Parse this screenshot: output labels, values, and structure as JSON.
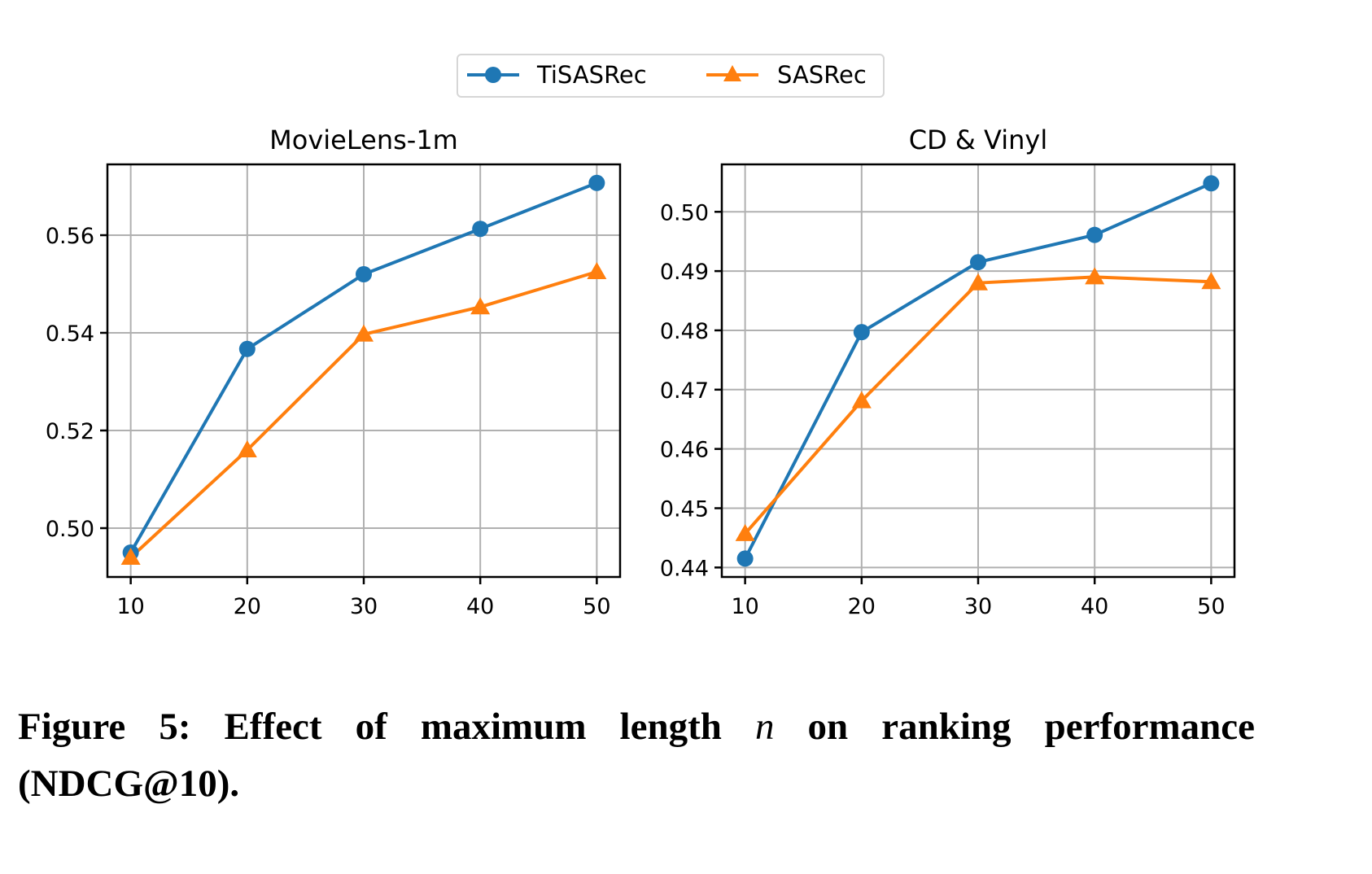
{
  "colors": {
    "tisasrec": "#1f77b4",
    "sasrec": "#ff7f0e",
    "grid": "#b0b0b0",
    "axis": "#000000"
  },
  "legend": {
    "items": [
      {
        "label": "TiSASRec",
        "marker": "circle",
        "color": "#1f77b4"
      },
      {
        "label": "SASRec",
        "marker": "triangle-up",
        "color": "#ff7f0e"
      }
    ],
    "placement": "top-center"
  },
  "caption": {
    "prefix": "Figure 5: Effect of maximum length ",
    "variable": "n",
    "suffix": " on ranking performance (NDCG@10)."
  },
  "chart_data": [
    {
      "type": "line",
      "title": "MovieLens-1m",
      "xlabel": "",
      "ylabel": "",
      "x": [
        10,
        20,
        30,
        40,
        50
      ],
      "xticks": [
        "10",
        "20",
        "30",
        "40",
        "50"
      ],
      "xlim": [
        8,
        52
      ],
      "yticks": [
        0.5,
        0.52,
        0.54,
        0.56
      ],
      "ytick_labels": [
        "0.50",
        "0.52",
        "0.54",
        "0.56"
      ],
      "ylim": [
        0.49,
        0.5745
      ],
      "grid": true,
      "series": [
        {
          "name": "TiSASRec",
          "marker": "circle",
          "values": [
            0.495,
            0.5367,
            0.552,
            0.5613,
            0.5707
          ]
        },
        {
          "name": "SASRec",
          "marker": "triangle-up",
          "values": [
            0.494,
            0.516,
            0.5397,
            0.5453,
            0.5525
          ]
        }
      ]
    },
    {
      "type": "line",
      "title": "CD & Vinyl",
      "xlabel": "",
      "ylabel": "",
      "x": [
        10,
        20,
        30,
        40,
        50
      ],
      "xticks": [
        "10",
        "20",
        "30",
        "40",
        "50"
      ],
      "xlim": [
        8,
        52
      ],
      "yticks": [
        0.44,
        0.45,
        0.46,
        0.47,
        0.48,
        0.49,
        0.5
      ],
      "ytick_labels": [
        "0.44",
        "0.45",
        "0.46",
        "0.47",
        "0.48",
        "0.49",
        "0.50"
      ],
      "ylim": [
        0.4384,
        0.508
      ],
      "grid": true,
      "series": [
        {
          "name": "TiSASRec",
          "marker": "circle",
          "values": [
            0.4415,
            0.4797,
            0.4915,
            0.4961,
            0.5048
          ]
        },
        {
          "name": "SASRec",
          "marker": "triangle-up",
          "values": [
            0.4457,
            0.4681,
            0.488,
            0.489,
            0.4882
          ]
        }
      ]
    }
  ]
}
